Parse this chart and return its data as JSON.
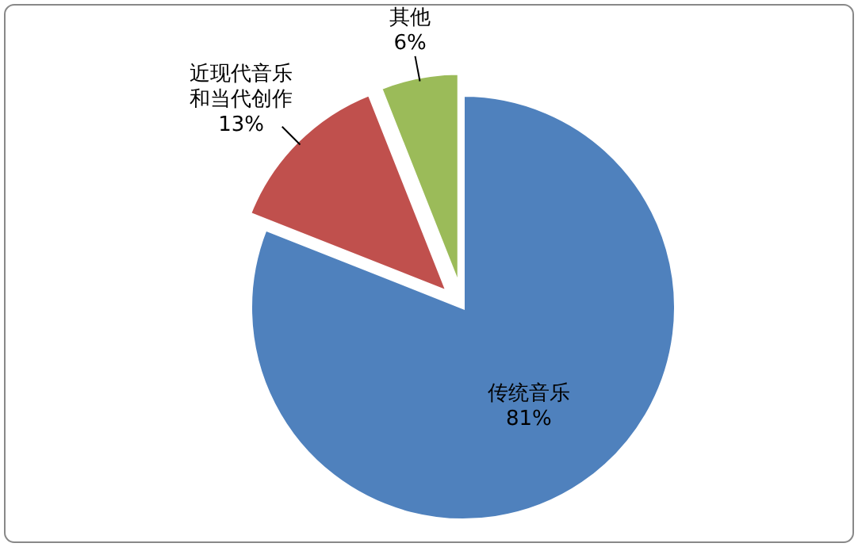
{
  "chart_data": {
    "type": "pie",
    "categories": [
      "传统音乐",
      "近现代音乐和当代创作",
      "其他"
    ],
    "values": [
      81,
      13,
      6
    ],
    "colors": [
      "#4f81bd",
      "#c0504d",
      "#9bbb59"
    ],
    "value_labels": [
      "81%",
      "13%",
      "6%"
    ]
  }
}
